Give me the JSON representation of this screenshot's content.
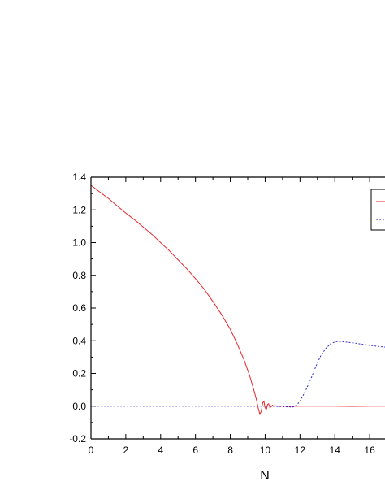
{
  "chart_data": {
    "type": "line",
    "title": "",
    "xlabel": "N",
    "ylabel": "",
    "xlim": [
      0,
      17
    ],
    "ylim": [
      -0.2,
      1.4
    ],
    "x_ticks": [
      "0",
      "2",
      "4",
      "6",
      "8",
      "10",
      "12",
      "14",
      "16"
    ],
    "y_ticks": [
      "-0.2",
      "0.0",
      "0.2",
      "0.4",
      "0.6",
      "0.8",
      "1.0",
      "1.2",
      "1.4"
    ],
    "grid": false,
    "legend": "top-right",
    "series": [
      {
        "color": "#e8262a",
        "style": "solid",
        "points": [
          [
            0,
            1.35
          ],
          [
            0.5,
            1.31
          ],
          [
            1,
            1.27
          ],
          [
            1.5,
            1.225
          ],
          [
            2,
            1.18
          ],
          [
            2.5,
            1.14
          ],
          [
            3,
            1.095
          ],
          [
            3.5,
            1.05
          ],
          [
            4,
            1.0
          ],
          [
            4.5,
            0.95
          ],
          [
            5,
            0.895
          ],
          [
            5.5,
            0.84
          ],
          [
            6,
            0.78
          ],
          [
            6.5,
            0.715
          ],
          [
            7,
            0.64
          ],
          [
            7.5,
            0.56
          ],
          [
            8,
            0.47
          ],
          [
            8.4,
            0.38
          ],
          [
            8.8,
            0.28
          ],
          [
            9.1,
            0.19
          ],
          [
            9.35,
            0.1
          ],
          [
            9.5,
            0.04
          ],
          [
            9.6,
            -0.01
          ],
          [
            9.7,
            -0.05
          ],
          [
            9.78,
            -0.03
          ],
          [
            9.86,
            0.02
          ],
          [
            9.93,
            0.03
          ],
          [
            10.0,
            -0.01
          ],
          [
            10.07,
            -0.02
          ],
          [
            10.14,
            0.01
          ],
          [
            10.2,
            0.015
          ],
          [
            10.27,
            -0.008
          ],
          [
            10.34,
            -0.005
          ],
          [
            10.42,
            0.006
          ],
          [
            10.5,
            0.0
          ],
          [
            10.6,
            0.003
          ],
          [
            10.7,
            -0.002
          ],
          [
            10.85,
            0.001
          ],
          [
            11,
            0.0
          ],
          [
            11.5,
            -0.001
          ],
          [
            12,
            0.0
          ],
          [
            13,
            0.0
          ],
          [
            14,
            0.0
          ],
          [
            15,
            -0.001
          ],
          [
            16,
            0.0
          ],
          [
            17,
            0.0
          ]
        ]
      },
      {
        "color": "#2b2bd6",
        "style": "dashed",
        "points": [
          [
            0,
            0.0
          ],
          [
            2,
            0.0
          ],
          [
            4,
            0.0
          ],
          [
            6,
            0.0
          ],
          [
            8,
            0.0
          ],
          [
            9.5,
            0.0
          ],
          [
            10.5,
            0.0
          ],
          [
            11.2,
            -0.004
          ],
          [
            11.6,
            -0.005
          ],
          [
            11.8,
            0.005
          ],
          [
            12.0,
            0.03
          ],
          [
            12.3,
            0.09
          ],
          [
            12.6,
            0.16
          ],
          [
            12.9,
            0.24
          ],
          [
            13.2,
            0.31
          ],
          [
            13.5,
            0.355
          ],
          [
            13.8,
            0.385
          ],
          [
            14.1,
            0.395
          ],
          [
            14.4,
            0.395
          ],
          [
            14.8,
            0.39
          ],
          [
            15.2,
            0.385
          ],
          [
            15.6,
            0.378
          ],
          [
            16,
            0.372
          ],
          [
            16.5,
            0.365
          ],
          [
            17,
            0.36
          ]
        ]
      }
    ]
  }
}
